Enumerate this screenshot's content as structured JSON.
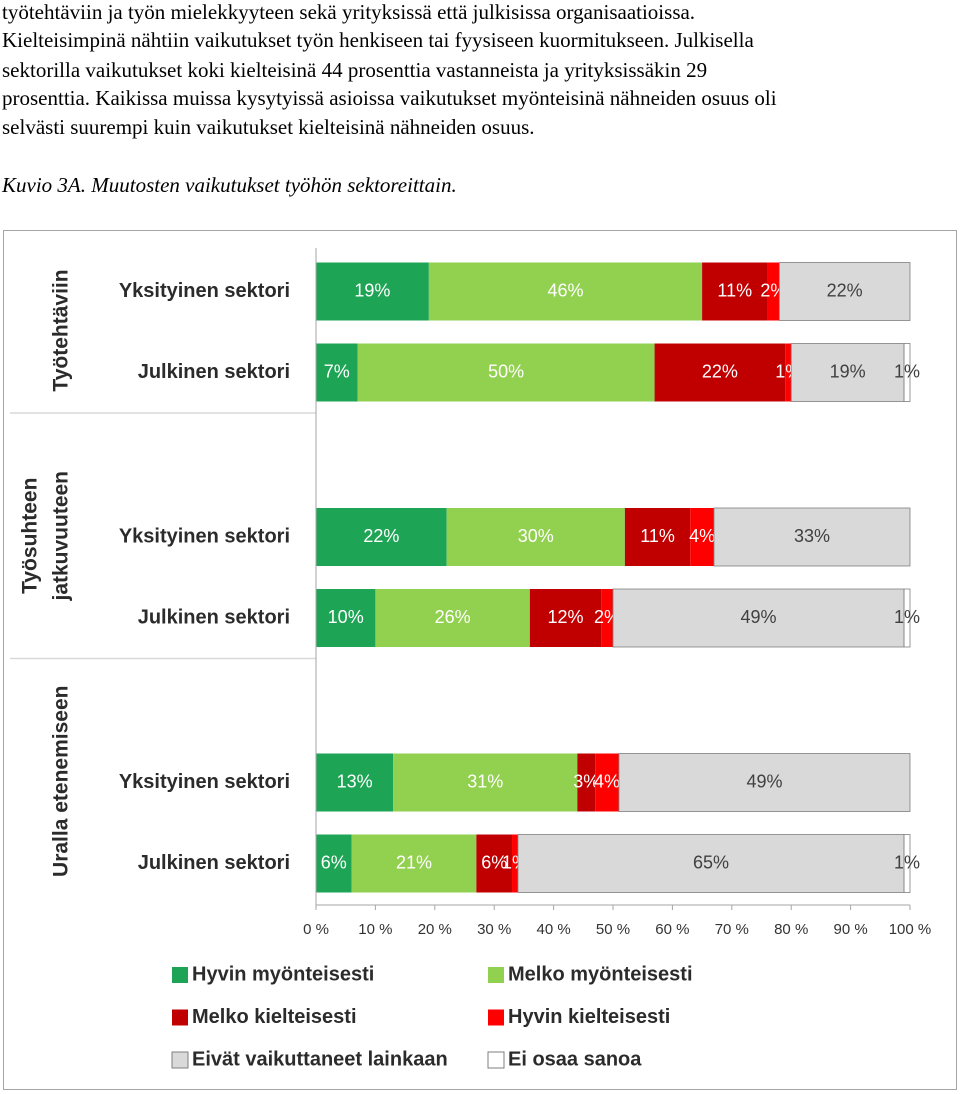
{
  "document": {
    "lines": [
      "työtehtäviin ja työn mielekkyyteen sekä yrityksissä että julkisissa organisaatioissa.",
      "Kielteisimpinä nähtiin vaikutukset työn henkiseen tai fyysiseen kuormitukseen. Julkisella",
      "sektorilla vaikutukset koki kielteisinä 44 prosenttia vastanneista ja yrityksissäkin 29",
      "prosenttia. Kaikissa muissa kysytyissä asioissa vaikutukset myönteisinä nähneiden osuus oli",
      "selvästi suurempi kuin vaikutukset kielteisinä nähneiden osuus."
    ],
    "caption": "Kuvio 3A. Muutosten vaikutukset työhön sektoreittain."
  },
  "chart_data": {
    "type": "stacked-barh",
    "groups": [
      [
        "Työtehtäviin"
      ],
      [
        "Työsuhteen",
        "jatkuvuuteen"
      ],
      [
        "Uralla etenemiseen"
      ]
    ],
    "categories": [
      "Yksityinen sektori",
      "Julkinen sektori",
      "Yksityinen sektori",
      "Julkinen sektori",
      "Yksityinen sektori",
      "Julkinen sektori"
    ],
    "series": [
      {
        "name": "Hyvin myönteisesti",
        "color": "#1ea455",
        "values": [
          19,
          7,
          22,
          10,
          13,
          6
        ],
        "value_labels": [
          "19%",
          "7%",
          "22%",
          "10%",
          "13%",
          "6%"
        ]
      },
      {
        "name": "Melko myönteisesti",
        "color": "#92d050",
        "values": [
          46,
          50,
          30,
          26,
          31,
          21
        ],
        "value_labels": [
          "46%",
          "50%",
          "30%",
          "26%",
          "31%",
          "21%"
        ]
      },
      {
        "name": "Melko kielteisesti",
        "color": "#c00000",
        "values": [
          11,
          22,
          11,
          12,
          3,
          6
        ],
        "value_labels": [
          "11%",
          "22%",
          "11%",
          "12%",
          "3%",
          "6%"
        ]
      },
      {
        "name": "Hyvin kielteisesti",
        "color": "#ff0000",
        "values": [
          2,
          1,
          4,
          2,
          4,
          1
        ],
        "value_labels": [
          "2%",
          "1%",
          "4%",
          "2%",
          "4%",
          "1%"
        ]
      },
      {
        "name": "Eivät vaikuttaneet lainkaan",
        "color": "#d9d9d9",
        "values": [
          22,
          19,
          33,
          49,
          49,
          65
        ],
        "value_labels": [
          "22%",
          "19%",
          "33%",
          "49%",
          "49%",
          "65%"
        ]
      },
      {
        "name": "Ei osaa sanoa",
        "color": "#ffffff",
        "values": [
          0,
          1,
          0,
          1,
          0,
          1
        ],
        "value_labels": [
          null,
          "1%",
          null,
          "1%",
          null,
          "1%"
        ]
      }
    ],
    "xlim": [
      0,
      100
    ],
    "xticks": [
      {
        "value": 0,
        "label": "0 %"
      },
      {
        "value": 10,
        "label": "10 %"
      },
      {
        "value": 20,
        "label": "20 %"
      },
      {
        "value": 30,
        "label": "30 %"
      },
      {
        "value": 40,
        "label": "40 %"
      },
      {
        "value": 50,
        "label": "50 %"
      },
      {
        "value": 60,
        "label": "60 %"
      },
      {
        "value": 70,
        "label": "70 %"
      },
      {
        "value": 80,
        "label": "80 %"
      },
      {
        "value": 90,
        "label": "90 %"
      },
      {
        "value": 100,
        "label": "100 %"
      }
    ],
    "legend": "bottom"
  }
}
